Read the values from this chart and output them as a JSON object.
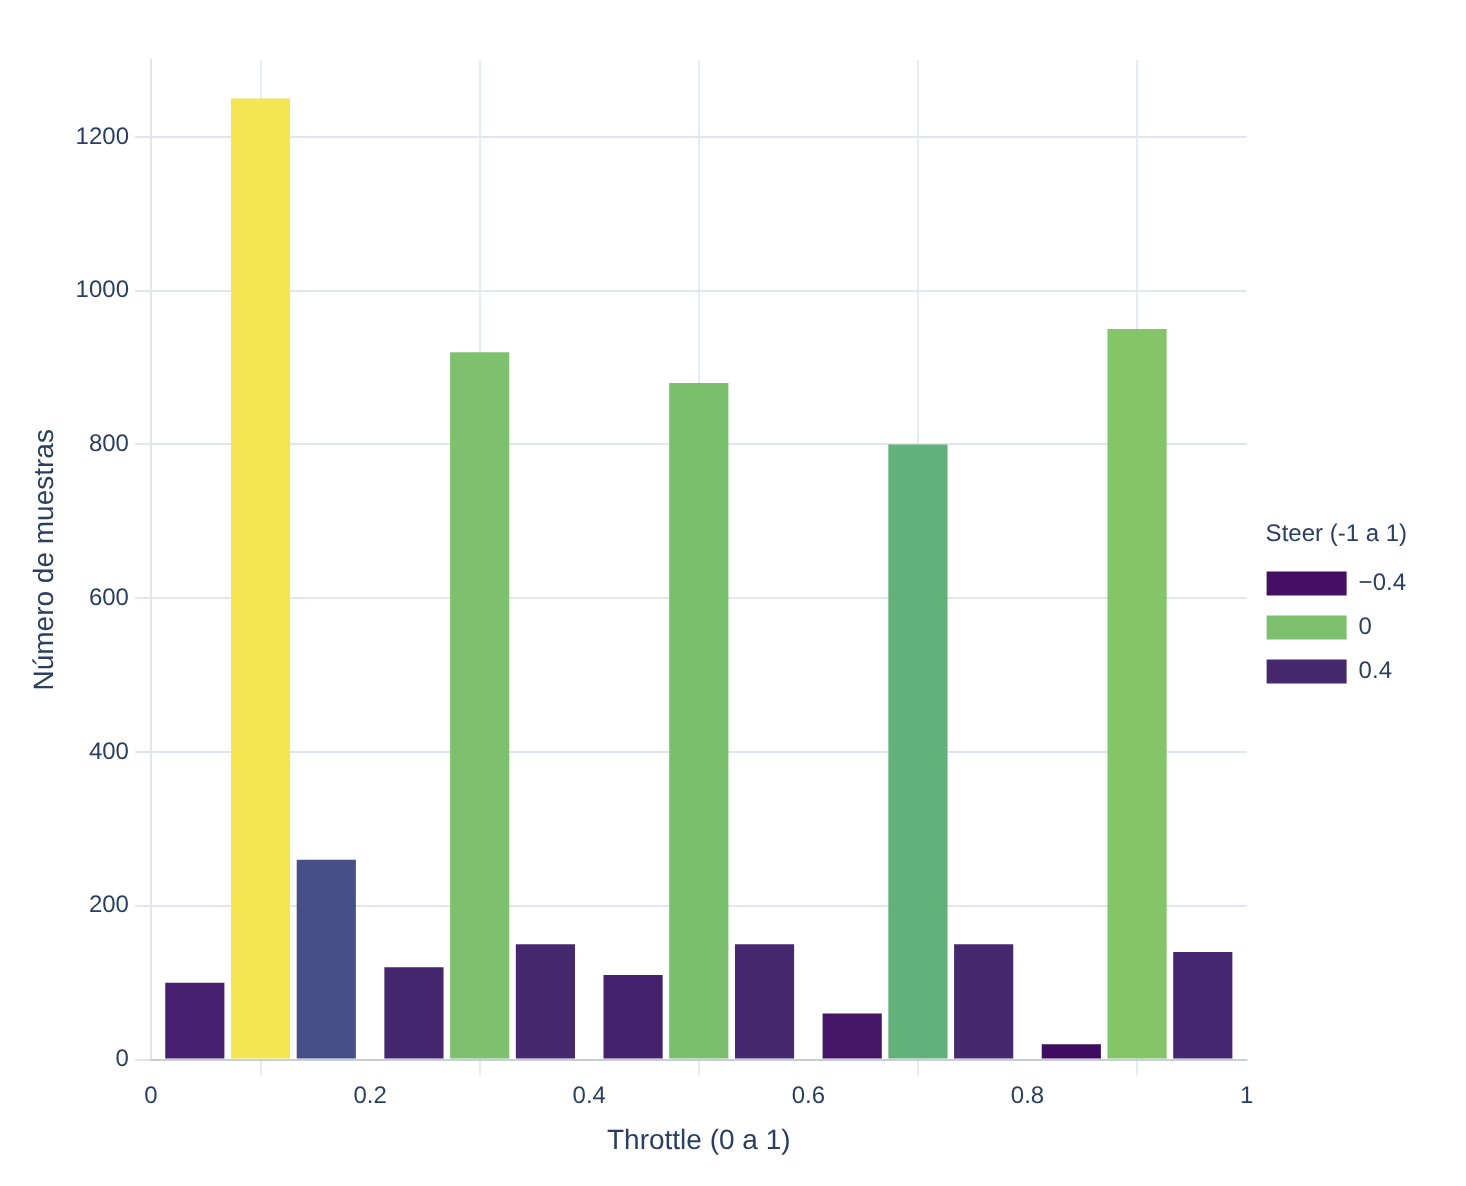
{
  "chart_data": {
    "type": "bar",
    "xlabel": "Throttle (0 a 1)",
    "ylabel": "Número de muestras",
    "legend_title": "Steer (-1 a 1)",
    "x": [
      0.1,
      0.3,
      0.5,
      0.7,
      0.9
    ],
    "xlim": [
      0,
      1
    ],
    "xticks": [
      0,
      0.2,
      0.4,
      0.6,
      0.8,
      1
    ],
    "ylim": [
      0,
      1300
    ],
    "yticks": [
      0,
      200,
      400,
      600,
      800,
      1000,
      1200
    ],
    "series": [
      {
        "name": "−0.4",
        "color": "#440f62",
        "colors": [
          "#47216f",
          "#46256f",
          "#45226e",
          "#441665",
          "#3f0d5f"
        ],
        "values": [
          100,
          120,
          110,
          60,
          20
        ]
      },
      {
        "name": "0",
        "color": "#7dc06d",
        "colors": [
          "#f4e553",
          "#7dc06d",
          "#7abf6c",
          "#62b07a",
          "#85c56a"
        ],
        "values": [
          1250,
          920,
          880,
          800,
          950
        ]
      },
      {
        "name": "0.4",
        "color": "#46286f",
        "colors": [
          "#454f88",
          "#46286f",
          "#46286f",
          "#46286f",
          "#452670"
        ],
        "values": [
          260,
          150,
          150,
          150,
          140
        ]
      }
    ],
    "grid": true,
    "legend": "right"
  }
}
